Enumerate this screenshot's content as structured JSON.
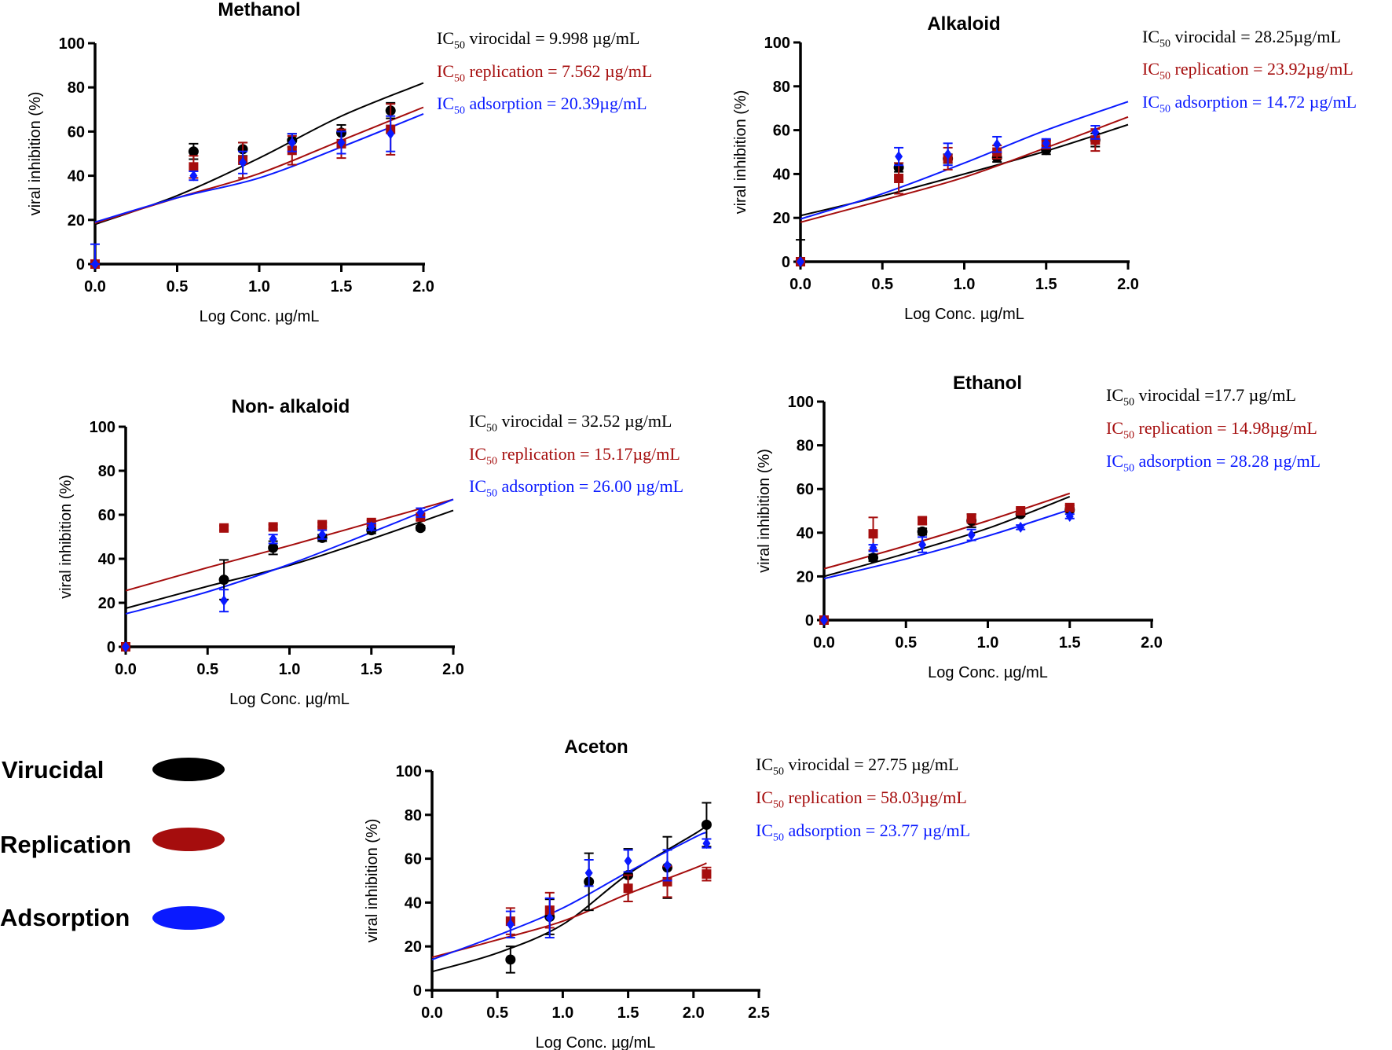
{
  "colors": {
    "virucidal": "#000000",
    "replication": "#a50d0d",
    "adsorption": "#0a1aff"
  },
  "legend": [
    {
      "label": "Virucidal",
      "series": "virucidal",
      "marker": "ellipse"
    },
    {
      "label": "Replication",
      "series": "replication",
      "marker": "ellipse"
    },
    {
      "label": "Adsorption",
      "series": "adsorption",
      "marker": "ellipse"
    }
  ],
  "chart_data": [
    {
      "type": "scatter",
      "title": "Methanol",
      "xlabel": "Log Conc. µg/mL",
      "ylabel": "viral inhibition (%)",
      "xlim": [
        0,
        2.0
      ],
      "ylim": [
        0,
        100
      ],
      "xticks": [
        "0.0",
        "0.5",
        "1.0",
        "1.5",
        "2.0"
      ],
      "yticks": [
        "0",
        "20",
        "40",
        "60",
        "80",
        "100"
      ],
      "annotations": [
        {
          "pre": "IC",
          "sub": "50",
          "text": " virocidal = 9.998 µg/mL",
          "series": "virucidal"
        },
        {
          "pre": "IC",
          "sub": "50",
          "text": " replication = 7.562 µg/mL",
          "series": "replication"
        },
        {
          "pre": "IC",
          "sub": "50",
          "text": " adsorption = 20.39µg/mL",
          "series": "adsorption"
        }
      ],
      "x": [
        0,
        0.6,
        0.9,
        1.2,
        1.5,
        1.8
      ],
      "series": [
        {
          "key": "virucidal",
          "marker": "circle",
          "values": [
            0,
            51,
            52,
            56,
            59.5,
            69.5
          ],
          "error": [
            0,
            3.5,
            3,
            3,
            3.5,
            3.5
          ],
          "fit": {
            "x": [
              0,
              0.5,
              1.0,
              1.5,
              2.0
            ],
            "y": [
              18,
              31,
              48,
              67,
              82
            ]
          }
        },
        {
          "key": "replication",
          "marker": "square",
          "values": [
            0,
            44,
            47,
            51.5,
            54.5,
            61
          ],
          "error": [
            0,
            5,
            8,
            6.5,
            6.5,
            11.5
          ],
          "fit": {
            "x": [
              0,
              0.5,
              1.0,
              1.5,
              2.0
            ],
            "y": [
              18.5,
              30,
              41,
              56,
              71
            ]
          }
        },
        {
          "key": "adsorption",
          "marker": "diamond",
          "values": [
            0,
            40,
            46,
            55,
            55,
            59
          ],
          "error": [
            9,
            2,
            5,
            4,
            5,
            8
          ],
          "fit": {
            "x": [
              0,
              0.5,
              1.0,
              1.5,
              2.0
            ],
            "y": [
              19,
              30,
              39,
              53,
              68
            ]
          }
        }
      ]
    },
    {
      "type": "scatter",
      "title": "Alkaloid",
      "xlabel": "Log Conc. µg/mL",
      "ylabel": "viral inhibition (%)",
      "xlim": [
        0,
        2.0
      ],
      "ylim": [
        0,
        100
      ],
      "xticks": [
        "0.0",
        "0.5",
        "1.0",
        "1.5",
        "2.0"
      ],
      "yticks": [
        "0",
        "20",
        "40",
        "60",
        "80",
        "100"
      ],
      "annotations": [
        {
          "pre": "IC",
          "sub": "50",
          "text": " virocidal = 28.25µg/mL",
          "series": "virucidal"
        },
        {
          "pre": "IC",
          "sub": "50",
          "text": " replication = 23.92µg/mL",
          "series": "replication"
        },
        {
          "pre": "IC",
          "sub": "50",
          "text": " adsorption = 14.72 µg/mL",
          "series": "adsorption"
        }
      ],
      "x": [
        0,
        0.6,
        0.9,
        1.2,
        1.5,
        1.8
      ],
      "series": [
        {
          "key": "virucidal",
          "marker": "circle",
          "values": [
            0,
            43,
            47,
            47.5,
            51,
            55.5
          ],
          "error": [
            10,
            2,
            2,
            2,
            2,
            3
          ],
          "fit": {
            "x": [
              0,
              0.5,
              1.0,
              1.5,
              2.0
            ],
            "y": [
              21,
              30,
              40,
              50.5,
              62.5
            ]
          }
        },
        {
          "key": "replication",
          "marker": "square",
          "values": [
            0,
            38,
            47,
            50,
            53.5,
            55.5
          ],
          "error": [
            0,
            7,
            5,
            3,
            2,
            5
          ],
          "fit": {
            "x": [
              0,
              0.5,
              1.0,
              1.5,
              2.0
            ],
            "y": [
              18,
              28,
              38.5,
              52,
              66
            ]
          }
        },
        {
          "key": "adsorption",
          "marker": "diamond",
          "values": [
            0,
            48,
            49,
            53.5,
            54,
            59
          ],
          "error": [
            0,
            4,
            5,
            3.5,
            2,
            3
          ],
          "fit": {
            "x": [
              0,
              0.5,
              1.0,
              1.5,
              2.0
            ],
            "y": [
              19.5,
              31,
              45,
              60,
              73
            ]
          }
        }
      ]
    },
    {
      "type": "scatter",
      "title": "Non- alkaloid",
      "xlabel": "Log Conc. µg/mL",
      "ylabel": "viral inhibition (%)",
      "xlim": [
        0,
        2.0
      ],
      "ylim": [
        0,
        100
      ],
      "xticks": [
        "0.0",
        "0.5",
        "1.0",
        "1.5",
        "2.0"
      ],
      "yticks": [
        "0",
        "20",
        "40",
        "60",
        "80",
        "100"
      ],
      "annotations": [
        {
          "pre": "IC",
          "sub": "50",
          "text": " virocidal = 32.52 µg/mL",
          "series": "virucidal"
        },
        {
          "pre": "IC",
          "sub": "50",
          "text": " replication = 15.17µg/mL",
          "series": "replication"
        },
        {
          "pre": "IC",
          "sub": "50",
          "text": " adsorption = 26.00 µg/mL",
          "series": "adsorption"
        }
      ],
      "x": [
        0,
        0.6,
        0.9,
        1.2,
        1.5,
        1.8
      ],
      "series": [
        {
          "key": "virucidal",
          "marker": "circle",
          "values": [
            0,
            30.5,
            45,
            49.5,
            53,
            54
          ],
          "error": [
            0,
            9,
            3,
            1.5,
            1.5,
            1
          ],
          "fit": {
            "x": [
              0,
              0.5,
              1.0,
              1.5,
              2.0
            ],
            "y": [
              17.5,
              27.5,
              37,
              49,
              62
            ]
          }
        },
        {
          "key": "replication",
          "marker": "square",
          "values": [
            0,
            54,
            54.5,
            55.5,
            56.5,
            59
          ],
          "error": [
            0,
            1,
            1,
            1,
            1,
            1.5
          ],
          "fit": {
            "x": [
              0,
              0.5,
              1.0,
              1.5,
              2.0
            ],
            "y": [
              25.5,
              36,
              46,
              56.5,
              67
            ]
          }
        },
        {
          "key": "adsorption",
          "marker": "diamond",
          "values": [
            0,
            21,
            49,
            51,
            54.5,
            61
          ],
          "error": [
            0,
            5,
            2,
            2,
            1.5,
            2
          ],
          "fit": {
            "x": [
              0,
              0.5,
              1.0,
              1.5,
              2.0
            ],
            "y": [
              15,
              25,
              37.5,
              52,
              67
            ]
          }
        }
      ]
    },
    {
      "type": "scatter",
      "title": "Ethanol",
      "xlabel": "Log Conc. µg/mL",
      "ylabel": "viral inhibition (%)",
      "xlim": [
        0,
        2.0
      ],
      "ylim": [
        0,
        100
      ],
      "xticks": [
        "0.0",
        "0.5",
        "1.0",
        "1.5",
        "2.0"
      ],
      "yticks": [
        "0",
        "20",
        "40",
        "60",
        "80",
        "100"
      ],
      "annotations": [
        {
          "pre": "IC",
          "sub": "50",
          "text": " virocidal =17.7 µg/mL",
          "series": "virucidal"
        },
        {
          "pre": "IC",
          "sub": "50",
          "text": " replication = 14.98µg/mL",
          "series": "replication"
        },
        {
          "pre": "IC",
          "sub": "50",
          "text": " adsorption = 28.28 µg/mL",
          "series": "adsorption"
        }
      ],
      "x": [
        0,
        0.3,
        0.6,
        0.9,
        1.2,
        1.5
      ],
      "series": [
        {
          "key": "virucidal",
          "marker": "circle",
          "values": [
            0,
            28.5,
            40.5,
            45.5,
            48.5,
            50.5
          ],
          "error": [
            0,
            1.5,
            1.5,
            3,
            1,
            1
          ],
          "fit": {
            "x": [
              0,
              0.5,
              1.0,
              1.5
            ],
            "y": [
              20,
              30.5,
              42,
              56.5
            ]
          }
        },
        {
          "key": "replication",
          "marker": "square",
          "values": [
            0,
            39.5,
            45.5,
            46.5,
            50,
            51.5
          ],
          "error": [
            0,
            7.5,
            1.5,
            2,
            1,
            1
          ],
          "fit": {
            "x": [
              0,
              0.5,
              1.0,
              1.5
            ],
            "y": [
              23.5,
              34,
              45.5,
              58
            ]
          }
        },
        {
          "key": "adsorption",
          "marker": "diamond",
          "values": [
            0,
            33,
            34.5,
            39,
            42.5,
            47.5
          ],
          "error": [
            0,
            1.5,
            3.5,
            2.5,
            1,
            1
          ],
          "fit": {
            "x": [
              0,
              0.5,
              1.0,
              1.5
            ],
            "y": [
              19,
              28,
              38.5,
              50.5
            ]
          }
        }
      ]
    },
    {
      "type": "scatter",
      "title": "Aceton",
      "xlabel": "Log Conc. µg/mL",
      "ylabel": "viral inhibition (%)",
      "xlim": [
        0,
        2.5
      ],
      "ylim": [
        0,
        100
      ],
      "xticks": [
        "0.0",
        "0.5",
        "1.0",
        "1.5",
        "2.0",
        "2.5"
      ],
      "yticks": [
        "0",
        "20",
        "40",
        "60",
        "80",
        "100"
      ],
      "annotations": [
        {
          "pre": "IC",
          "sub": "50",
          "text": " virocidal = 27.75 µg/mL",
          "series": "virucidal"
        },
        {
          "pre": "IC",
          "sub": "50",
          "text": " replication = 58.03µg/mL",
          "series": "replication"
        },
        {
          "pre": "IC",
          "sub": "50",
          "text": " adsorption = 23.77 µg/mL",
          "series": "adsorption"
        }
      ],
      "x": [
        0.6,
        0.9,
        1.2,
        1.5,
        1.8,
        2.1
      ],
      "series": [
        {
          "key": "virucidal",
          "marker": "circle",
          "values": [
            14,
            33.5,
            49.5,
            52.5,
            56,
            75.5
          ],
          "error": [
            6,
            8,
            13,
            12,
            14,
            10
          ],
          "fit": {
            "x": [
              0,
              0.5,
              1.0,
              1.5,
              2.0,
              2.1
            ],
            "y": [
              8.5,
              17,
              30,
              53,
              71,
              75
            ]
          }
        },
        {
          "key": "replication",
          "marker": "square",
          "values": [
            31.5,
            36.5,
            null,
            46.5,
            49.5,
            53
          ],
          "error": [
            6,
            8,
            0,
            6,
            7,
            3
          ],
          "fit": {
            "x": [
              0,
              0.5,
              1.0,
              1.5,
              2.0,
              2.1
            ],
            "y": [
              15,
              23,
              31.5,
              44,
              55.5,
              58
            ]
          }
        },
        {
          "key": "adsorption",
          "marker": "diamond",
          "values": [
            30,
            33,
            53.5,
            59,
            57,
            67
          ],
          "error": [
            6,
            9,
            6,
            5,
            7,
            2
          ],
          "fit": {
            "x": [
              0,
              0.5,
              1.0,
              1.5,
              2.0,
              2.1
            ],
            "y": [
              14,
              25,
              37.5,
              54,
              69.5,
              72
            ]
          }
        }
      ]
    }
  ]
}
